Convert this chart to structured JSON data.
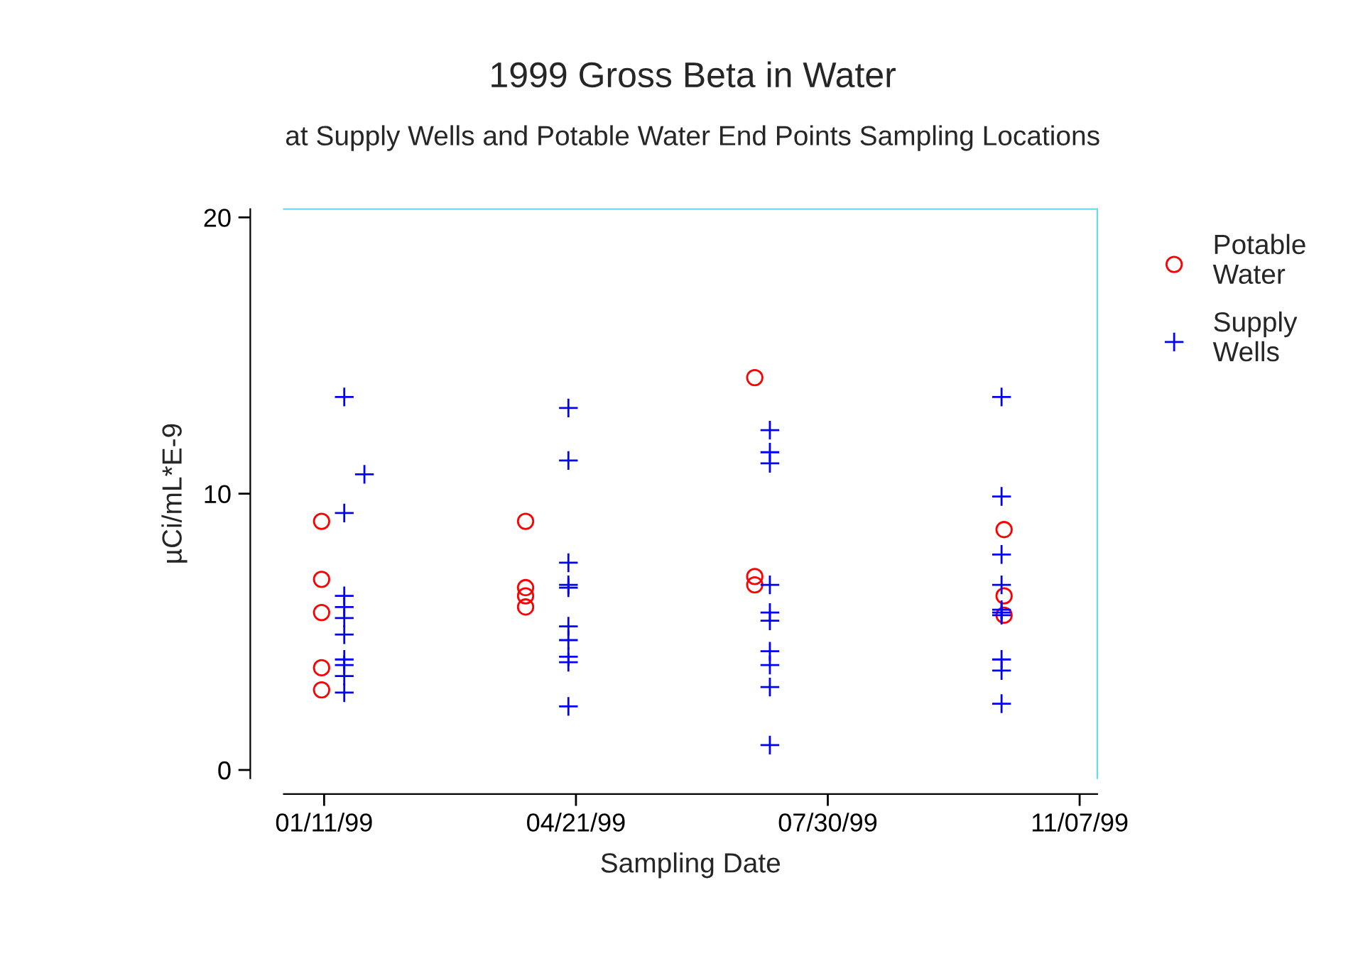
{
  "chart_data": {
    "type": "scatter",
    "title": "1999 Gross Beta in Water",
    "subtitle": "at Supply Wells and Potable Water End Points Sampling Locations",
    "xlabel": "Sampling Date",
    "ylabel": "µCi/mL*E-9",
    "series": [
      {
        "name": "Potable\nWater",
        "color": "#ff0000",
        "marker": "circle",
        "x": [
          "1999-01-10",
          "1999-01-10",
          "1999-01-10",
          "1999-01-10",
          "1999-01-10",
          "1999-04-01",
          "1999-04-01",
          "1999-04-01",
          "1999-04-01",
          "1999-07-01",
          "1999-07-01",
          "1999-07-01",
          "1999-10-08",
          "1999-10-08",
          "1999-10-08"
        ],
        "values": [
          9.0,
          6.9,
          5.7,
          3.7,
          2.9,
          9.0,
          6.6,
          6.3,
          5.9,
          14.2,
          7.0,
          6.7,
          8.7,
          6.3,
          5.6
        ]
      },
      {
        "name": "Supply\nWells",
        "color": "#0000ff",
        "marker": "cross",
        "x": [
          "1999-01-19",
          "1999-01-19",
          "1999-01-19",
          "1999-01-19",
          "1999-01-19",
          "1999-01-19",
          "1999-01-19",
          "1999-01-19",
          "1999-01-19",
          "1999-01-19",
          "1999-01-27",
          "1999-04-18",
          "1999-04-18",
          "1999-04-18",
          "1999-04-18",
          "1999-04-18",
          "1999-04-18",
          "1999-04-18",
          "1999-04-18",
          "1999-04-18",
          "1999-04-18",
          "1999-07-07",
          "1999-07-07",
          "1999-07-07",
          "1999-07-07",
          "1999-07-07",
          "1999-07-07",
          "1999-07-07",
          "1999-07-07",
          "1999-07-07",
          "1999-07-07",
          "1999-10-07",
          "1999-10-07",
          "1999-10-07",
          "1999-10-07",
          "1999-10-07",
          "1999-10-07",
          "1999-10-07",
          "1999-10-07",
          "1999-10-07",
          "1999-10-07"
        ],
        "values": [
          13.5,
          9.3,
          6.3,
          5.9,
          5.5,
          4.9,
          4.0,
          3.8,
          3.4,
          2.8,
          10.7,
          13.1,
          11.2,
          7.5,
          6.7,
          6.6,
          5.2,
          4.7,
          4.1,
          3.9,
          2.3,
          12.3,
          11.5,
          11.1,
          6.7,
          5.7,
          5.4,
          4.3,
          3.8,
          3.0,
          0.9,
          13.5,
          9.9,
          7.8,
          6.7,
          5.8,
          5.7,
          5.6,
          4.0,
          3.6,
          2.4
        ]
      }
    ],
    "xlim": [
      "1998-12-26",
      "1999-11-14"
    ],
    "xticks": [
      {
        "value": "1999-01-11",
        "label": "01/11/99"
      },
      {
        "value": "1999-04-21",
        "label": "04/21/99"
      },
      {
        "value": "1999-07-30",
        "label": "07/30/99"
      },
      {
        "value": "1999-11-07",
        "label": "11/07/99"
      }
    ],
    "ylim": [
      -0.3,
      20.3
    ],
    "yticks": [
      0,
      10,
      20
    ],
    "grid": false,
    "legend": "top right"
  }
}
